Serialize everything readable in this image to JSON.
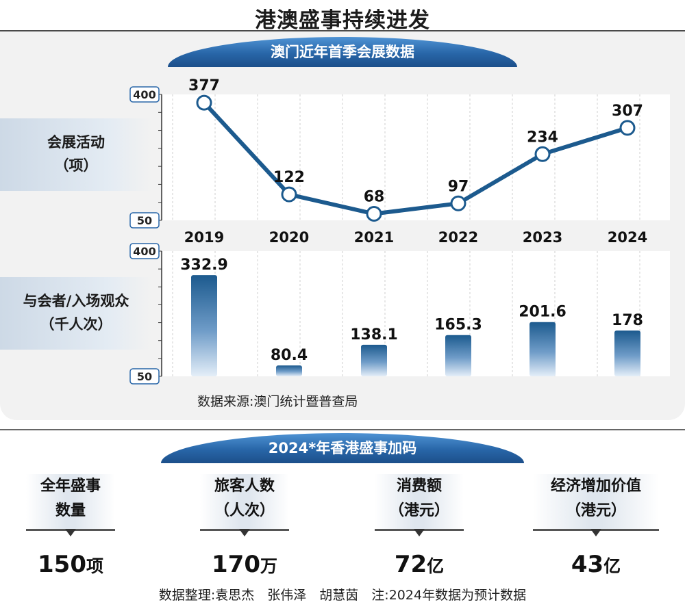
{
  "title": "港澳盛事持续进发",
  "macau_section": {
    "ribbon": "澳门近年首季会展数据",
    "events_label_line1": "会展活动",
    "events_label_line2": "（项）",
    "visitors_label_line1": "与会者/入场观众",
    "visitors_label_line2": "（千人次）",
    "source": "数据来源:澳门统计暨普查局"
  },
  "chart_data": [
    {
      "type": "line",
      "categories": [
        "2019",
        "2020",
        "2021",
        "2022",
        "2023",
        "2024"
      ],
      "values": [
        377,
        122,
        68,
        97,
        234,
        307
      ],
      "value_labels": [
        "377",
        "122",
        "68",
        "97",
        "234",
        "307"
      ],
      "ylabel": "会展活动（项）",
      "ylim": [
        50,
        400
      ],
      "yticks": [
        "400",
        "50"
      ],
      "grid": true,
      "color": "#1c5a8e"
    },
    {
      "type": "bar",
      "categories": [
        "2019",
        "2020",
        "2021",
        "2022",
        "2023",
        "2024"
      ],
      "values": [
        332.9,
        80.4,
        138.1,
        165.3,
        201.6,
        178
      ],
      "value_labels": [
        "332.9",
        "80.4",
        "138.1",
        "165.3",
        "201.6",
        "178"
      ],
      "ylabel": "与会者/入场观众（千人次）",
      "ylim": [
        50,
        400
      ],
      "yticks": [
        "400",
        "50"
      ],
      "grid": true,
      "color": "#1c5a8e"
    }
  ],
  "hk_section": {
    "ribbon": "2024*年香港盛事加码",
    "stats": [
      {
        "line1": "全年盛事",
        "line2": "数量",
        "value": "150",
        "unit": "项"
      },
      {
        "line1": "旅客人数",
        "line2": "（人次）",
        "value": "170",
        "unit": "万"
      },
      {
        "line1": "消费额",
        "line2": "（港元）",
        "value": "72",
        "unit": "亿"
      },
      {
        "line1": "经济增加价值",
        "line2": "（港元）",
        "value": "43",
        "unit": "亿"
      }
    ]
  },
  "footer": "数据整理:袁思杰　张伟泽　胡慧茵　注:2024年数据为预计数据"
}
